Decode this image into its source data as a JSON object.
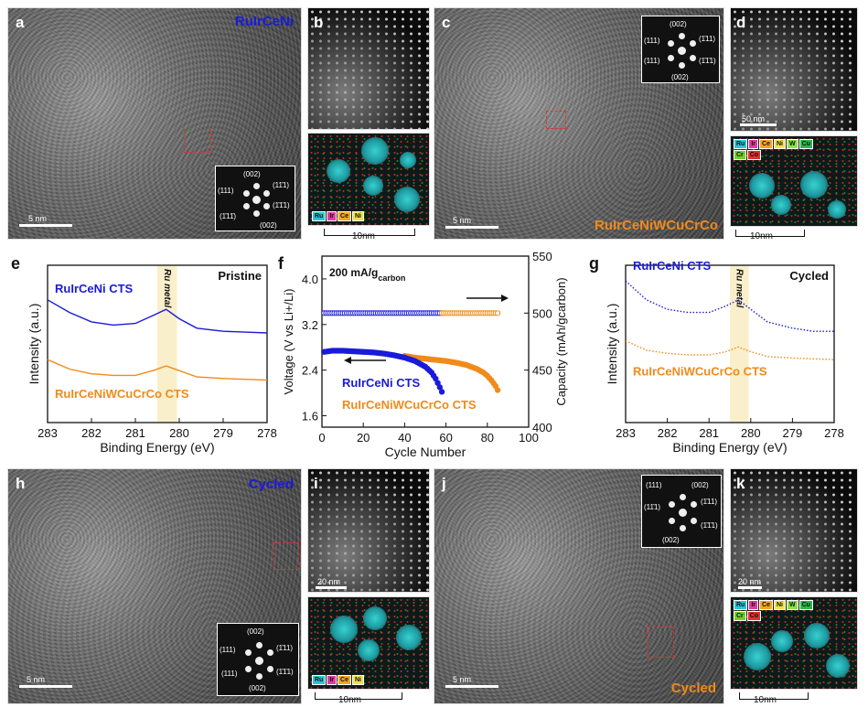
{
  "panels": {
    "a": {
      "letter": "a",
      "title": "RuIrCeNi",
      "scale": "5 nm",
      "fft": [
        "(002)",
        "(111)",
        "(11̄1)",
        "(1̄1̄1)",
        "(1̄11̄)",
        "(002)"
      ]
    },
    "b": {
      "letter": "b",
      "scale_bottom": "10nm",
      "chips": [
        {
          "t": "Ru",
          "c": "#28c6d8"
        },
        {
          "t": "Ir",
          "c": "#e23aa0"
        },
        {
          "t": "Ce",
          "c": "#f5a623"
        },
        {
          "t": "Ni",
          "c": "#f3e24a"
        }
      ]
    },
    "c": {
      "letter": "c",
      "title": "RuIrCeNiWCuCrCo",
      "scale": "5 nm",
      "fft": [
        "(002)",
        "(111)",
        "(1̄11)",
        "(111)",
        "(1̄1̄1)",
        "(002)"
      ]
    },
    "d": {
      "letter": "d",
      "scale": "50 nm",
      "scale_bottom": "10nm",
      "chips": [
        {
          "t": "Ru",
          "c": "#28c6d8"
        },
        {
          "t": "Ir",
          "c": "#e23aa0"
        },
        {
          "t": "Ce",
          "c": "#f5a623"
        },
        {
          "t": "Ni",
          "c": "#f3e24a"
        },
        {
          "t": "W",
          "c": "#8ee04a"
        },
        {
          "t": "Cu",
          "c": "#2ab84a"
        },
        {
          "t": "Cr",
          "c": "#6fd12a"
        },
        {
          "t": "Co",
          "c": "#e23030"
        }
      ]
    },
    "h": {
      "letter": "h",
      "title": "Cycled",
      "scale": "5 nm",
      "fft": [
        "(002)",
        "(111)",
        "(1̄11)",
        "(111)",
        "(1̄1̄1)",
        "(002)"
      ]
    },
    "i": {
      "letter": "i",
      "scale": "20 nm",
      "scale_bottom": "10nm",
      "chips": [
        {
          "t": "Ru",
          "c": "#28c6d8"
        },
        {
          "t": "Ir",
          "c": "#e23aa0"
        },
        {
          "t": "Ce",
          "c": "#f5a623"
        },
        {
          "t": "Ni",
          "c": "#f3e24a"
        }
      ]
    },
    "j": {
      "letter": "j",
      "title": "Cycled",
      "scale": "5 nm",
      "fft": [
        "(111)",
        "(002)",
        "(11̄1)",
        "(1̄11)",
        "(1̄1̄1)",
        "(002)"
      ]
    },
    "k": {
      "letter": "k",
      "scale": "20 nm",
      "scale_bottom": "10nm",
      "chips": [
        {
          "t": "Ru",
          "c": "#28c6d8"
        },
        {
          "t": "Ir",
          "c": "#e23aa0"
        },
        {
          "t": "Ce",
          "c": "#f5a623"
        },
        {
          "t": "Ni",
          "c": "#f3e24a"
        },
        {
          "t": "W",
          "c": "#8ee04a"
        },
        {
          "t": "Cu",
          "c": "#2ab84a"
        },
        {
          "t": "Cr",
          "c": "#6fd12a"
        },
        {
          "t": "Co",
          "c": "#e23030"
        }
      ]
    }
  },
  "chart_data": [
    {
      "panel": "e",
      "type": "line",
      "title": "Pristine",
      "xlabel": "Binding Energy (eV)",
      "ylabel": "Intensity (a.u.)",
      "xlim": [
        283,
        278
      ],
      "xticks": [
        283,
        282,
        281,
        280,
        279,
        278
      ],
      "band_label": "Ru metal",
      "band": [
        280.5,
        280.05
      ],
      "series": [
        {
          "name": "RuIrCeNi CTS",
          "color": "#1a1adb",
          "x": [
            283,
            282.5,
            282,
            281.5,
            281,
            280.6,
            280.3,
            280.0,
            279.6,
            279,
            278.5,
            278
          ],
          "y": [
            0.78,
            0.7,
            0.64,
            0.62,
            0.63,
            0.68,
            0.72,
            0.66,
            0.6,
            0.58,
            0.575,
            0.57
          ]
        },
        {
          "name": "RuIrCeNiWCuCrCo CTS",
          "color": "#f08a1a",
          "x": [
            283,
            282.5,
            282,
            281.5,
            281,
            280.6,
            280.3,
            280.0,
            279.6,
            279,
            278.5,
            278
          ],
          "y": [
            0.4,
            0.34,
            0.31,
            0.3,
            0.3,
            0.33,
            0.36,
            0.33,
            0.29,
            0.28,
            0.275,
            0.27
          ]
        }
      ]
    },
    {
      "panel": "f",
      "type": "scatter",
      "title": "200 mA/gcarbon",
      "xlabel": "Cycle Number",
      "ylabel": "Voltage (V vs Li+/Li)",
      "y2label": "Capacity (mAh/gcarbon)",
      "xlim": [
        0,
        100
      ],
      "xticks": [
        0,
        20,
        40,
        60,
        80,
        100
      ],
      "ylim": [
        1.4,
        4.4
      ],
      "yticks": [
        1.6,
        2.4,
        3.2,
        4.0
      ],
      "y2lim": [
        400,
        550
      ],
      "y2ticks": [
        400,
        450,
        500,
        550
      ],
      "series": [
        {
          "name": "RuIrCeNi CTS",
          "color": "#1a1adb",
          "axis": "left",
          "x": [
            1,
            5,
            10,
            15,
            20,
            25,
            30,
            35,
            40,
            45,
            50,
            53,
            55,
            57,
            58
          ],
          "y": [
            2.72,
            2.74,
            2.74,
            2.73,
            2.72,
            2.71,
            2.69,
            2.66,
            2.62,
            2.56,
            2.46,
            2.36,
            2.25,
            2.1,
            2.02
          ]
        },
        {
          "name": "RuIrCeNiWCuCrCo CTS",
          "color": "#f08a1a",
          "axis": "left",
          "x": [
            40,
            45,
            50,
            55,
            60,
            65,
            70,
            75,
            78,
            80,
            82,
            84,
            85
          ],
          "y": [
            2.65,
            2.62,
            2.6,
            2.58,
            2.56,
            2.53,
            2.49,
            2.42,
            2.36,
            2.3,
            2.22,
            2.12,
            2.05
          ]
        },
        {
          "name": "RuIrCeNi CTS capacity",
          "color": "#1a1adb",
          "axis": "right",
          "x": [
            1,
            10,
            20,
            30,
            40,
            50,
            58
          ],
          "y": [
            500,
            500,
            500,
            500,
            500,
            500,
            500
          ]
        },
        {
          "name": "RuIrCeNiWCuCrCo CTS capacity",
          "color": "#f08a1a",
          "axis": "right",
          "x": [
            58,
            65,
            72,
            79,
            85
          ],
          "y": [
            500,
            500,
            500,
            500,
            500
          ]
        }
      ]
    },
    {
      "panel": "g",
      "type": "line",
      "title": "Cycled",
      "xlabel": "Binding Energy (eV)",
      "ylabel": "Intensity (a.u.)",
      "xlim": [
        283,
        278
      ],
      "xticks": [
        283,
        282,
        281,
        280,
        279,
        278
      ],
      "band_label": "Ru metal",
      "band": [
        280.5,
        280.05
      ],
      "series": [
        {
          "name": "RuIrCeNi CTS",
          "color": "#1a1adb",
          "x": [
            283,
            282.5,
            282,
            281.5,
            281,
            280.6,
            280.3,
            280.0,
            279.6,
            279,
            278.5,
            278
          ],
          "y": [
            0.9,
            0.78,
            0.72,
            0.7,
            0.7,
            0.74,
            0.78,
            0.72,
            0.64,
            0.6,
            0.58,
            0.58
          ]
        },
        {
          "name": "RuIrCeNiWCuCrCo CTS",
          "color": "#f08a1a",
          "x": [
            283,
            282.5,
            282,
            281.5,
            281,
            280.6,
            280.3,
            280.0,
            279.6,
            279,
            278.5,
            278
          ],
          "y": [
            0.52,
            0.46,
            0.44,
            0.43,
            0.43,
            0.45,
            0.48,
            0.45,
            0.42,
            0.41,
            0.405,
            0.4
          ]
        }
      ]
    }
  ]
}
